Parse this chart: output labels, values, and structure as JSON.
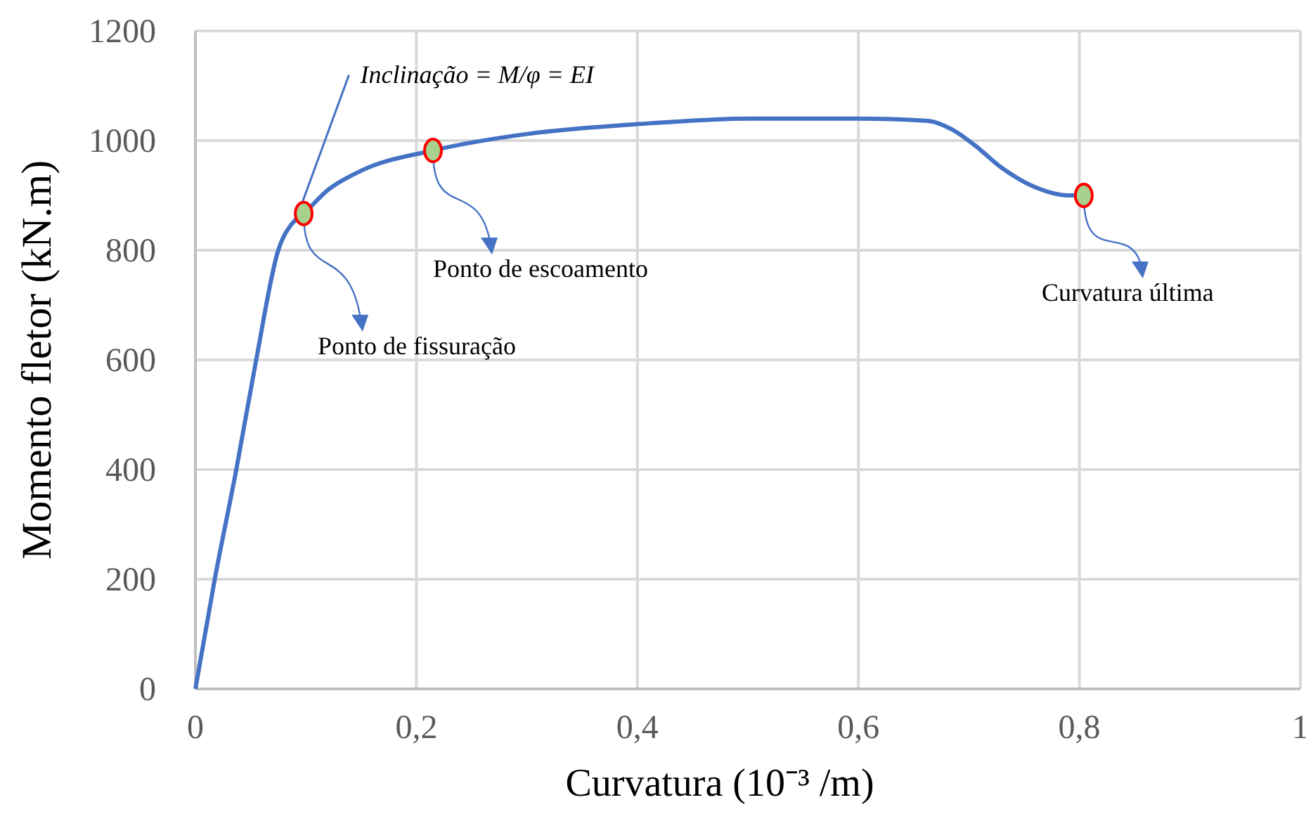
{
  "chart_data": {
    "type": "line",
    "xlabel": "Curvatura (10⁻³ /m)",
    "ylabel": "Momento fletor (kN.m)",
    "xlim": [
      0,
      1
    ],
    "ylim": [
      0,
      1200
    ],
    "xticks": [
      0,
      {
        "value": 0.2,
        "label": "0,2"
      },
      {
        "value": 0.4,
        "label": "0,4"
      },
      {
        "value": 0.6,
        "label": "0,6"
      },
      {
        "value": 0.8,
        "label": "0,8"
      },
      1
    ],
    "yticks": [
      0,
      200,
      400,
      600,
      800,
      1000,
      1200
    ],
    "grid": true,
    "line_style": "solid",
    "series": [
      {
        "color": "#4472c4",
        "marker": "none",
        "x": [
          0,
          0.0175,
          0.037,
          0.055,
          0.075,
          0.088,
          0.098,
          0.12,
          0.15,
          0.215,
          0.3,
          0.4,
          0.5,
          0.6,
          0.663,
          0.685,
          0.705,
          0.73,
          0.76,
          0.79,
          0.804
        ],
        "values": [
          0,
          200,
          400,
          600,
          800,
          850,
          867,
          910,
          945,
          982,
          1012,
          1030,
          1040,
          1040,
          1036,
          1020,
          992,
          950,
          915,
          900,
          900
        ]
      },
      {
        "type": "line",
        "color": "#4472c4",
        "marker": "none",
        "x": [
          0.09,
          0.139
        ],
        "values": [
          850,
          1120
        ]
      },
      {
        "type": "scatter",
        "color": "#a9d18e",
        "marker": "circle",
        "x": [
          0.098,
          0.215,
          0.804
        ],
        "values": [
          867,
          982,
          900
        ]
      }
    ],
    "annotations": [
      {
        "text": "Inclinação = M/φ = EI",
        "x": 0.139,
        "y": 1120
      },
      {
        "text": "Ponto de fissuração",
        "x": 0.098,
        "y": 867
      },
      {
        "text": "Ponto de escoamento",
        "x": 0.215,
        "y": 982
      },
      {
        "text": "Curvatura última",
        "x": 0.804,
        "y": 900
      }
    ]
  }
}
